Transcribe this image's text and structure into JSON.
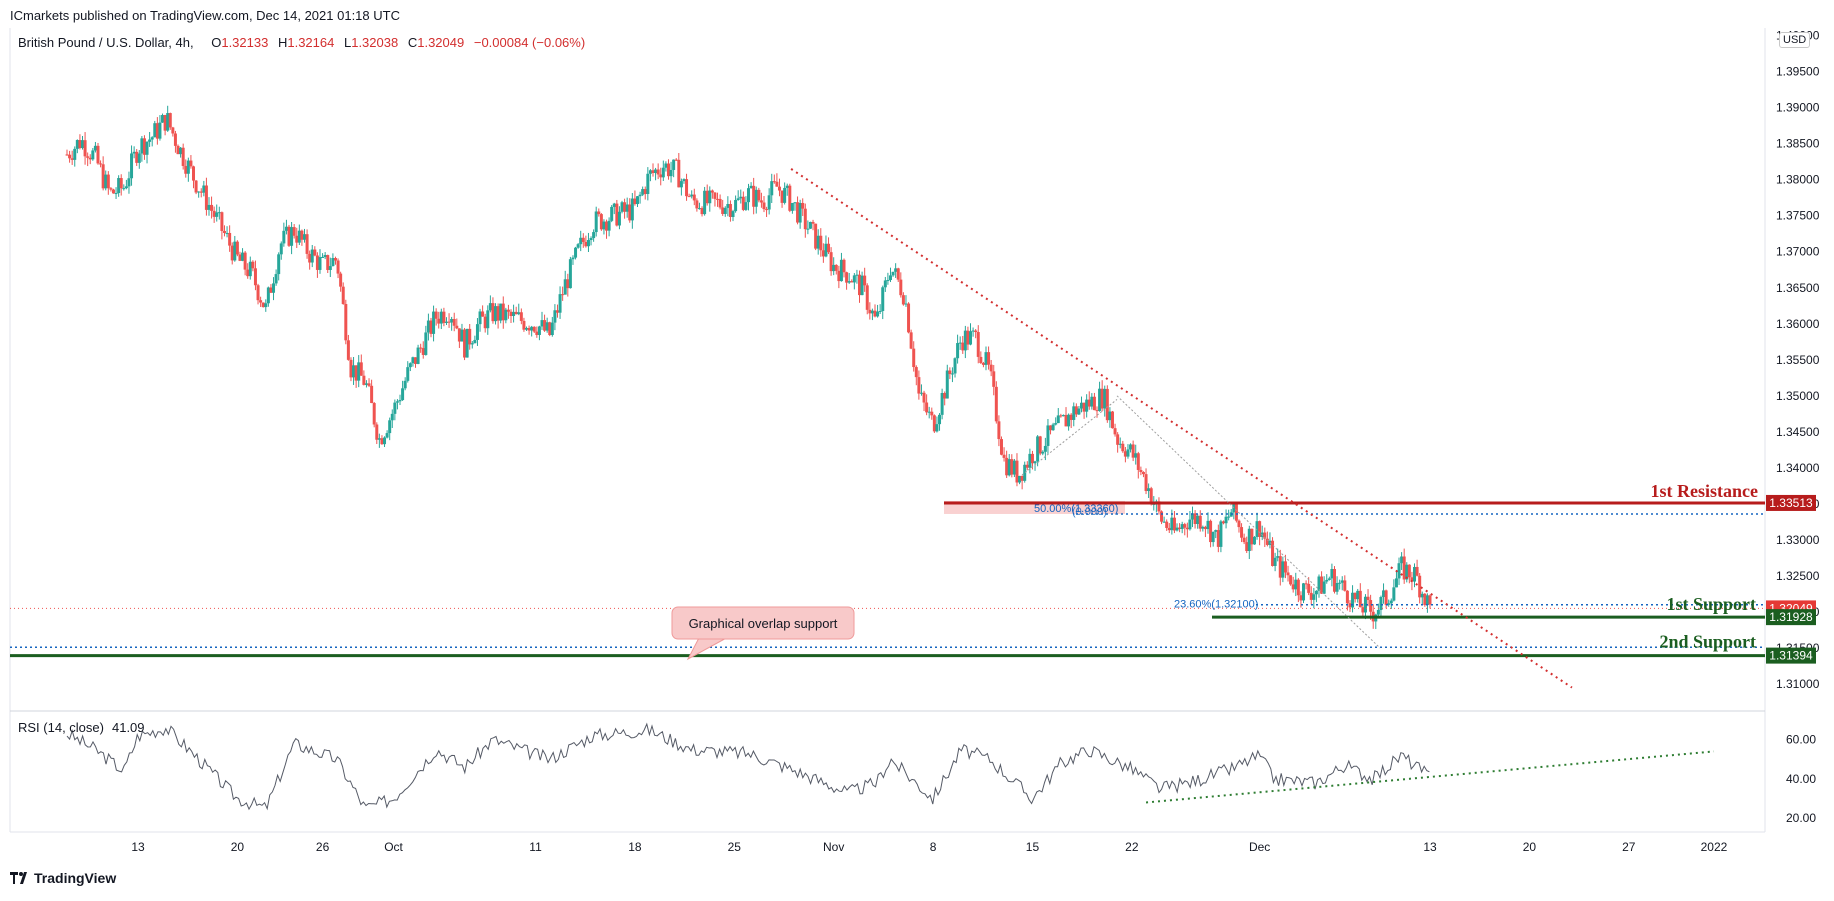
{
  "header": {
    "publisher": "ICmarkets published on TradingView.com, Dec 14, 2021 01:18 UTC",
    "symbol": "British Pound / U.S. Dollar, 4h,",
    "ohlc": {
      "o_label": "O",
      "o_value": "1.32133",
      "h_label": "H",
      "h_value": "1.32164",
      "l_label": "L",
      "l_value": "1.32038",
      "c_label": "C",
      "c_value": "1.32049",
      "change": "−0.00084 (−0.06%)"
    },
    "currency": "USD"
  },
  "footer": {
    "brand": "TradingView"
  },
  "rsi": {
    "label": "RSI (14, close)",
    "value": "41.09"
  },
  "colors": {
    "up": "#26a69a",
    "down": "#ef5350",
    "resistance": "#b71c1c",
    "support": "#1b5e20",
    "fib": "#1565c0",
    "trend": "#d32f2f"
  },
  "chart_data": [
    {
      "type": "candlestick",
      "title": "British Pound / U.S. Dollar, 4h",
      "xlabel": "",
      "ylabel": "",
      "ylim": [
        1.3075,
        1.4005
      ],
      "x_ticks": [
        "13",
        "20",
        "26",
        "Oct",
        "11",
        "18",
        "25",
        "Nov",
        "8",
        "15",
        "22",
        "Dec",
        "13",
        "20",
        "27",
        "2022"
      ],
      "y_ticks": [
        "1.40000",
        "1.39500",
        "1.39000",
        "1.38500",
        "1.38000",
        "1.37500",
        "1.37000",
        "1.36500",
        "1.36000",
        "1.35500",
        "1.35000",
        "1.34500",
        "1.34000",
        "1.33500",
        "1.33000",
        "1.32500",
        "1.32000",
        "1.31500",
        "1.31000"
      ],
      "price_path": [
        [
          "Sep 8",
          1.3835
        ],
        [
          "Sep 9",
          1.3855
        ],
        [
          "Sep 10",
          1.383
        ],
        [
          "Sep 11",
          1.378
        ],
        [
          "Sep 12",
          1.379
        ],
        [
          "Sep 13",
          1.3845
        ],
        [
          "Sep 14",
          1.386
        ],
        [
          "Sep 15",
          1.3885
        ],
        [
          "Sep 16",
          1.384
        ],
        [
          "Sep 17",
          1.38
        ],
        [
          "Sep 18",
          1.3765
        ],
        [
          "Sep 20",
          1.369
        ],
        [
          "Sep 21",
          1.367
        ],
        [
          "Sep 22",
          1.362
        ],
        [
          "Sep 23",
          1.371
        ],
        [
          "Sep 24",
          1.373
        ],
        [
          "Sep 25",
          1.37
        ],
        [
          "Sep 26",
          1.368
        ],
        [
          "Sep 27",
          1.369
        ],
        [
          "Sep 28",
          1.354
        ],
        [
          "Sep 29",
          1.352
        ],
        [
          "Sep 30",
          1.344
        ],
        [
          "Oct 1",
          1.348
        ],
        [
          "Oct 2",
          1.353
        ],
        [
          "Oct 3",
          1.357
        ],
        [
          "Oct 4",
          1.361
        ],
        [
          "Oct 5",
          1.362
        ],
        [
          "Oct 6",
          1.357
        ],
        [
          "Oct 7",
          1.36
        ],
        [
          "Oct 8",
          1.3615
        ],
        [
          "Oct 11",
          1.36
        ],
        [
          "Oct 12",
          1.3585
        ],
        [
          "Oct 13",
          1.365
        ],
        [
          "Oct 14",
          1.37
        ],
        [
          "Oct 15",
          1.374
        ],
        [
          "Oct 18",
          1.376
        ],
        [
          "Oct 19",
          1.3805
        ],
        [
          "Oct 20",
          1.382
        ],
        [
          "Oct 21",
          1.381
        ],
        [
          "Oct 22",
          1.377
        ],
        [
          "Oct 25",
          1.3765
        ],
        [
          "Oct 26",
          1.378
        ],
        [
          "Oct 27",
          1.377
        ],
        [
          "Oct 28",
          1.379
        ],
        [
          "Oct 29",
          1.377
        ],
        [
          "Nov 1",
          1.368
        ],
        [
          "Nov 2",
          1.367
        ],
        [
          "Nov 3",
          1.365
        ],
        [
          "Nov 4",
          1.36
        ],
        [
          "Nov 5",
          1.368
        ],
        [
          "Nov 6",
          1.364
        ],
        [
          "Nov 7",
          1.35
        ],
        [
          "Nov 8",
          1.346
        ],
        [
          "Nov 9",
          1.352
        ],
        [
          "Nov 10",
          1.358
        ],
        [
          "Nov 11",
          1.358
        ],
        [
          "Nov 12",
          1.353
        ],
        [
          "Nov 13",
          1.341
        ],
        [
          "Nov 14",
          1.339
        ],
        [
          "Nov 15",
          1.342
        ],
        [
          "Nov 16",
          1.344
        ],
        [
          "Nov 17",
          1.346
        ],
        [
          "Nov 18",
          1.348
        ],
        [
          "Nov 19",
          1.349
        ],
        [
          "Nov 20",
          1.35
        ],
        [
          "Nov 21",
          1.344
        ],
        [
          "Nov 22",
          1.342
        ],
        [
          "Nov 23",
          1.338
        ],
        [
          "Nov 24",
          1.333
        ],
        [
          "Nov 25",
          1.331
        ],
        [
          "Nov 26",
          1.333
        ],
        [
          "Nov 27",
          1.333
        ],
        [
          "Nov 28",
          1.33
        ],
        [
          "Nov 29",
          1.334
        ],
        [
          "Nov 30",
          1.33
        ],
        [
          "Dec 1",
          1.332
        ],
        [
          "Dec 2",
          1.327
        ],
        [
          "Dec 3",
          1.325
        ],
        [
          "Dec 4",
          1.323
        ],
        [
          "Dec 5",
          1.323
        ],
        [
          "Dec 6",
          1.325
        ],
        [
          "Dec 7",
          1.323
        ],
        [
          "Dec 8",
          1.321
        ],
        [
          "Dec 9",
          1.32
        ],
        [
          "Dec 10",
          1.322
        ],
        [
          "Dec 11",
          1.326
        ],
        [
          "Dec 12",
          1.325
        ],
        [
          "Dec 13",
          1.3205
        ]
      ],
      "levels": [
        {
          "name": "1st Resistance",
          "value": 1.33513,
          "badge": "1.33513"
        },
        {
          "name": "1st Support",
          "value": 1.31928,
          "badge": "1.31928"
        },
        {
          "name": "2nd Support",
          "value": 1.31394,
          "badge": "1.31394"
        }
      ],
      "last_price": {
        "value": 1.32049,
        "badge": "1.32049"
      },
      "fib": [
        {
          "label": "50.00%(1.33360)",
          "overlay_label": "(0.000)",
          "value": 1.3336
        },
        {
          "label": "23.60%(1.32100)",
          "value": 1.321
        }
      ],
      "dotted_support_value": 1.3151,
      "annotation": "Graphical overlap support",
      "trendline": {
        "from": [
          "Oct 29",
          1.3815
        ],
        "to": [
          "Dec 23",
          1.3095
        ]
      }
    },
    {
      "type": "line",
      "title": "RSI (14, close)",
      "xlabel": "",
      "ylabel": "",
      "ylim": [
        15,
        70
      ],
      "y_ticks": [
        "60.00",
        "40.00",
        "20.00"
      ],
      "last_value": 41.09,
      "path": [
        [
          "Sep 8",
          63
        ],
        [
          "Sep 10",
          55
        ],
        [
          "Sep 12",
          44
        ],
        [
          "Sep 13",
          62
        ],
        [
          "Sep 15",
          66
        ],
        [
          "Sep 17",
          52
        ],
        [
          "Sep 20",
          30
        ],
        [
          "Sep 22",
          25
        ],
        [
          "Sep 24",
          58
        ],
        [
          "Sep 27",
          50
        ],
        [
          "Sep 29",
          25
        ],
        [
          "Oct 1",
          30
        ],
        [
          "Oct 4",
          55
        ],
        [
          "Oct 6",
          46
        ],
        [
          "Oct 8",
          60
        ],
        [
          "Oct 12",
          50
        ],
        [
          "Oct 15",
          62
        ],
        [
          "Oct 19",
          65
        ],
        [
          "Oct 22",
          55
        ],
        [
          "Oct 26",
          53
        ],
        [
          "Oct 29",
          45
        ],
        [
          "Nov 2",
          33
        ],
        [
          "Nov 4",
          38
        ],
        [
          "Nov 5",
          50
        ],
        [
          "Nov 8",
          30
        ],
        [
          "Nov 10",
          55
        ],
        [
          "Nov 12",
          50
        ],
        [
          "Nov 15",
          30
        ],
        [
          "Nov 17",
          48
        ],
        [
          "Nov 19",
          55
        ],
        [
          "Nov 22",
          45
        ],
        [
          "Nov 24",
          35
        ],
        [
          "Nov 26",
          38
        ],
        [
          "Nov 29",
          45
        ],
        [
          "Dec 1",
          52
        ],
        [
          "Dec 2",
          40
        ],
        [
          "Dec 5",
          38
        ],
        [
          "Dec 7",
          47
        ],
        [
          "Dec 9",
          40
        ],
        [
          "Dec 11",
          52
        ],
        [
          "Dec 13",
          41
        ]
      ],
      "trendline": {
        "from": [
          "Nov 23",
          28
        ],
        "to": [
          "Jan 2",
          54
        ]
      }
    }
  ]
}
